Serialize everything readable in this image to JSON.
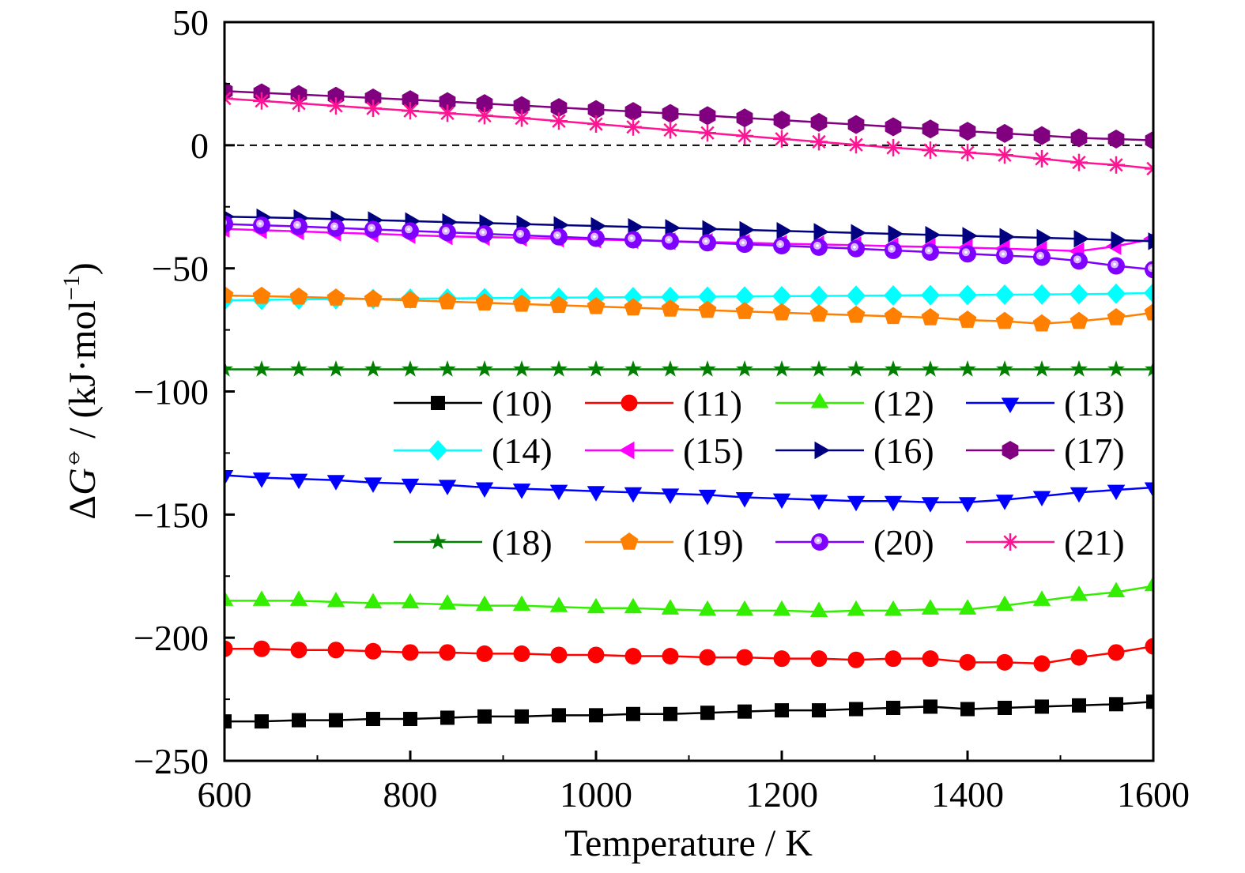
{
  "chart_data": {
    "type": "line",
    "xlabel": "Temperature / K",
    "ylabel": {
      "prefix": "Δ",
      "var": "G",
      "sup": "⦵",
      "unit_open": " / (kJ·mol",
      "unit_sup": "−1",
      "unit_close": ")"
    },
    "xlim": [
      600,
      1600
    ],
    "ylim": [
      -250,
      50
    ],
    "xticks": [
      600,
      800,
      1000,
      1200,
      1400,
      1600
    ],
    "yticks": [
      50,
      0,
      -50,
      -100,
      -150,
      -200,
      -250
    ],
    "xtick_labels": [
      "600",
      "800",
      "1000",
      "1200",
      "1400",
      "1600"
    ],
    "ytick_labels": [
      "50",
      "0",
      "−50",
      "−100",
      "−150",
      "−200",
      "−250"
    ],
    "reference_line": {
      "y": 0,
      "style": "dashed",
      "color": "#000000"
    },
    "grid": false,
    "legend_placement": "center-right, 3 rows x 4 columns",
    "x": [
      600,
      640,
      680,
      720,
      760,
      800,
      840,
      880,
      920,
      960,
      1000,
      1040,
      1080,
      1120,
      1160,
      1200,
      1240,
      1280,
      1320,
      1360,
      1400,
      1440,
      1480,
      1520,
      1560,
      1600
    ],
    "series": [
      {
        "name": "(10)",
        "color": "#000000",
        "marker": "square",
        "values": [
          -234,
          -234,
          -233.5,
          -233.5,
          -233,
          -233,
          -232.5,
          -232,
          -232,
          -231.5,
          -231.5,
          -231,
          -231,
          -230.5,
          -230,
          -229.5,
          -229.5,
          -229,
          -228.5,
          -228,
          -229,
          -228.5,
          -228,
          -227.5,
          -227,
          -226
        ]
      },
      {
        "name": "(11)",
        "color": "#ff0000",
        "marker": "circle",
        "values": [
          -204.5,
          -204.5,
          -205,
          -205,
          -205.5,
          -206,
          -206,
          -206.5,
          -206.5,
          -207,
          -207,
          -207.5,
          -207.5,
          -208,
          -208,
          -208.5,
          -208.5,
          -209,
          -208.5,
          -208.5,
          -210,
          -210,
          -210.5,
          -208,
          -206,
          -203.5
        ]
      },
      {
        "name": "(12)",
        "color": "#33ee00",
        "marker": "triangle-up",
        "values": [
          -185,
          -185,
          -185,
          -185.5,
          -186,
          -186,
          -186.5,
          -187,
          -187,
          -187.5,
          -188,
          -188,
          -188.5,
          -189,
          -189,
          -189,
          -189.5,
          -189,
          -189,
          -188.5,
          -188.5,
          -187,
          -185,
          -183,
          -181.5,
          -179
        ]
      },
      {
        "name": "(13)",
        "color": "#0000ff",
        "marker": "triangle-down",
        "values": [
          -134,
          -135,
          -135.5,
          -136,
          -137,
          -137.5,
          -138,
          -139,
          -139.5,
          -140,
          -140.5,
          -141,
          -141.5,
          -142,
          -143,
          -143.5,
          -144,
          -144.5,
          -144.5,
          -145,
          -145,
          -144,
          -142.5,
          -141,
          -140,
          -139
        ]
      },
      {
        "name": "(14)",
        "color": "#00ffff",
        "marker": "diamond",
        "values": [
          -63,
          -62.8,
          -62.6,
          -62.5,
          -62.4,
          -62.3,
          -62.2,
          -62.1,
          -62,
          -61.9,
          -61.8,
          -61.7,
          -61.6,
          -61.5,
          -61.4,
          -61.3,
          -61.2,
          -61.1,
          -61,
          -60.9,
          -60.8,
          -60.7,
          -60.6,
          -60.5,
          -60.3,
          -60
        ]
      },
      {
        "name": "(15)",
        "color": "#ff00ff",
        "marker": "triangle-left",
        "values": [
          -34,
          -34.5,
          -35,
          -35.5,
          -36,
          -36.5,
          -37,
          -37.3,
          -37.6,
          -38,
          -38.3,
          -38.6,
          -39,
          -39.3,
          -39.6,
          -40,
          -40.3,
          -40.6,
          -41,
          -41.3,
          -41.6,
          -42,
          -42.5,
          -43,
          -41,
          -38
        ]
      },
      {
        "name": "(16)",
        "color": "#000080",
        "marker": "triangle-right",
        "values": [
          -29,
          -29.3,
          -29.6,
          -30,
          -30.4,
          -30.8,
          -31.2,
          -31.6,
          -32,
          -32.4,
          -32.8,
          -33.2,
          -33.6,
          -34,
          -34.4,
          -34.8,
          -35.2,
          -35.6,
          -36,
          -36.4,
          -36.8,
          -37.2,
          -37.6,
          -38,
          -38.5,
          -39
        ]
      },
      {
        "name": "(17)",
        "color": "#800080",
        "marker": "hexagon",
        "values": [
          22,
          21.3,
          20.6,
          19.9,
          19.2,
          18.5,
          17.7,
          16.9,
          16.1,
          15.3,
          14.5,
          13.7,
          12.9,
          12,
          11.1,
          10.2,
          9.3,
          8.4,
          7.5,
          6.6,
          5.7,
          4.8,
          3.9,
          3,
          2.5,
          2
        ]
      },
      {
        "name": "(18)",
        "color": "#007f00",
        "marker": "star",
        "values": [
          -91,
          -91,
          -91,
          -91,
          -91,
          -91,
          -91,
          -91,
          -91,
          -91,
          -91,
          -91,
          -91,
          -91,
          -91,
          -91,
          -91,
          -91,
          -91,
          -91,
          -91,
          -91,
          -91,
          -91,
          -91,
          -91
        ]
      },
      {
        "name": "(19)",
        "color": "#ff8000",
        "marker": "pentagon",
        "values": [
          -61,
          -61.3,
          -61.6,
          -62,
          -62.5,
          -63,
          -63.5,
          -64,
          -64.5,
          -65,
          -65.5,
          -66,
          -66.5,
          -67,
          -67.5,
          -68,
          -68.5,
          -69,
          -69.5,
          -70,
          -71,
          -71.5,
          -72.5,
          -71.5,
          -70,
          -68
        ]
      },
      {
        "name": "(20)",
        "color": "#8000ff",
        "marker": "sphere",
        "values": [
          -32,
          -32.5,
          -33,
          -33.6,
          -34.2,
          -34.8,
          -35.4,
          -36,
          -36.6,
          -37.2,
          -37.8,
          -38.4,
          -39,
          -39.6,
          -40.2,
          -40.8,
          -41.4,
          -42,
          -42.7,
          -43.4,
          -44.1,
          -44.8,
          -45.5,
          -47,
          -49,
          -50.5
        ]
      },
      {
        "name": "(21)",
        "color": "#ff1493",
        "marker": "asterisk",
        "values": [
          19,
          18,
          17,
          16,
          15,
          14,
          13,
          12,
          11,
          9.8,
          8.6,
          7.4,
          6.2,
          5,
          3.8,
          2.6,
          1.4,
          0.2,
          -1,
          -2,
          -3,
          -4,
          -5.5,
          -7,
          -8,
          -9.5
        ]
      }
    ]
  }
}
